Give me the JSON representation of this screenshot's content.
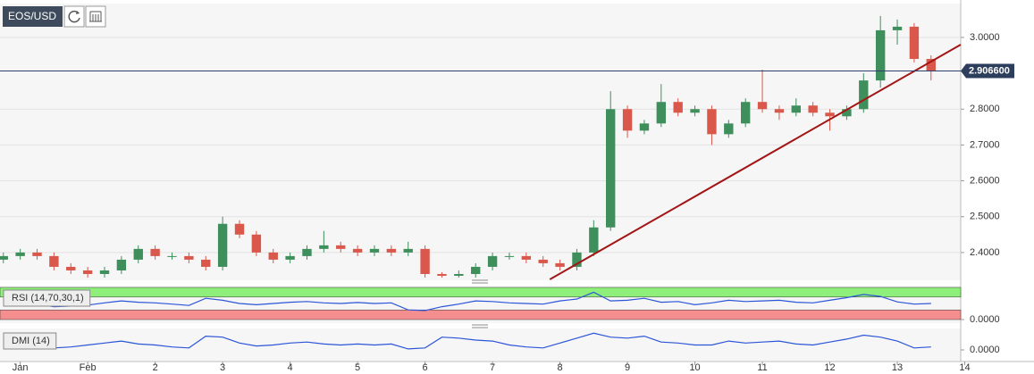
{
  "chart_data": {
    "type": "candlestick",
    "title": "EOS/USD",
    "x": [
      -0.25,
      0,
      0.25,
      0.5,
      0.75,
      1,
      1.25,
      1.5,
      1.75,
      2,
      2.25,
      2.5,
      2.75,
      3,
      3.25,
      3.5,
      3.75,
      4,
      4.25,
      4.5,
      4.75,
      5,
      5.25,
      5.5,
      5.75,
      6,
      6.25,
      6.5,
      6.75,
      7,
      7.25,
      7.5,
      7.75,
      8,
      8.25,
      8.5,
      8.75,
      9,
      9.25,
      9.5,
      9.75,
      10,
      10.25,
      10.5,
      10.75,
      11,
      11.25,
      11.5,
      11.75,
      12,
      12.25,
      12.5,
      12.75,
      13,
      13.25,
      13.5
    ],
    "open": [
      2.38,
      2.39,
      2.4,
      2.39,
      2.36,
      2.35,
      2.34,
      2.35,
      2.38,
      2.41,
      2.39,
      2.39,
      2.38,
      2.36,
      2.48,
      2.45,
      2.4,
      2.38,
      2.39,
      2.41,
      2.42,
      2.41,
      2.4,
      2.41,
      2.4,
      2.41,
      2.34,
      2.335,
      2.34,
      2.36,
      2.39,
      2.39,
      2.38,
      2.37,
      2.36,
      2.4,
      2.47,
      2.8,
      2.74,
      2.76,
      2.82,
      2.79,
      2.8,
      2.73,
      2.76,
      2.82,
      2.8,
      2.79,
      2.81,
      2.79,
      2.78,
      2.8,
      2.88,
      3.02,
      3.03,
      2.94
    ],
    "high": [
      2.4,
      2.41,
      2.41,
      2.4,
      2.37,
      2.36,
      2.36,
      2.39,
      2.42,
      2.42,
      2.4,
      2.4,
      2.39,
      2.5,
      2.49,
      2.46,
      2.41,
      2.4,
      2.42,
      2.46,
      2.43,
      2.42,
      2.42,
      2.42,
      2.43,
      2.42,
      2.345,
      2.35,
      2.37,
      2.4,
      2.4,
      2.4,
      2.39,
      2.38,
      2.41,
      2.49,
      2.85,
      2.81,
      2.77,
      2.87,
      2.83,
      2.81,
      2.81,
      2.77,
      2.83,
      2.91,
      2.81,
      2.83,
      2.82,
      2.8,
      2.81,
      2.9,
      3.06,
      3.05,
      3.04,
      2.95
    ],
    "low": [
      2.37,
      2.38,
      2.38,
      2.35,
      2.34,
      2.33,
      2.33,
      2.34,
      2.37,
      2.38,
      2.38,
      2.37,
      2.35,
      2.35,
      2.44,
      2.39,
      2.37,
      2.37,
      2.38,
      2.4,
      2.4,
      2.39,
      2.39,
      2.39,
      2.39,
      2.33,
      2.33,
      2.33,
      2.33,
      2.35,
      2.38,
      2.37,
      2.36,
      2.35,
      2.35,
      2.39,
      2.46,
      2.72,
      2.73,
      2.75,
      2.78,
      2.78,
      2.7,
      2.72,
      2.75,
      2.79,
      2.77,
      2.78,
      2.78,
      2.74,
      2.77,
      2.79,
      2.86,
      2.98,
      2.93,
      2.88
    ],
    "close": [
      2.39,
      2.4,
      2.39,
      2.36,
      2.35,
      2.34,
      2.35,
      2.38,
      2.41,
      2.39,
      2.39,
      2.38,
      2.36,
      2.48,
      2.45,
      2.4,
      2.38,
      2.39,
      2.41,
      2.42,
      2.41,
      2.4,
      2.41,
      2.4,
      2.41,
      2.34,
      2.335,
      2.34,
      2.36,
      2.39,
      2.39,
      2.38,
      2.37,
      2.36,
      2.4,
      2.47,
      2.8,
      2.74,
      2.76,
      2.82,
      2.79,
      2.8,
      2.73,
      2.76,
      2.82,
      2.8,
      2.79,
      2.81,
      2.79,
      2.78,
      2.8,
      2.88,
      3.02,
      3.03,
      2.94,
      2.906
    ],
    "up_color": "#3f8f5c",
    "down_color": "#d9574b",
    "xlim": [
      -0.3,
      13.94
    ],
    "ylim": [
      2.325,
      3.092
    ],
    "xticks": [
      {
        "value": 0,
        "label": "Jan"
      },
      {
        "value": 1,
        "label": "Feb"
      },
      2,
      3,
      4,
      5,
      6,
      7,
      8,
      9,
      10,
      11,
      12,
      13,
      14
    ],
    "yticks": [
      {
        "value": 2.4,
        "label": "2.4000"
      },
      {
        "value": 2.5,
        "label": "2.5000"
      },
      {
        "value": 2.6,
        "label": "2.6000"
      },
      {
        "value": 2.7,
        "label": "2.7000"
      },
      {
        "value": 2.8,
        "label": "2.8000"
      },
      {
        "value": 3.0,
        "label": "3.0000"
      }
    ],
    "grid": true,
    "current_price": {
      "value": 2.9066,
      "label": "2.906600"
    },
    "trendline": {
      "x": [
        7.85,
        13.94
      ],
      "y": [
        2.325,
        2.98
      ],
      "color": "#a31515"
    },
    "rsi": {
      "label": "RSI (14,70,30,1)",
      "ylim": [
        0,
        100
      ],
      "yticks": [
        {
          "value": 0,
          "label": "0.0000"
        }
      ],
      "bands": [
        30,
        70
      ],
      "color": "#2b55d8",
      "values": [
        50,
        52,
        48,
        40,
        42,
        45,
        52,
        58,
        54,
        52,
        48,
        44,
        66,
        60,
        50,
        46,
        50,
        54,
        56,
        52,
        50,
        53,
        50,
        52,
        30,
        28,
        40,
        48,
        58,
        56,
        52,
        50,
        48,
        58,
        64,
        85,
        58,
        60,
        66,
        54,
        56,
        46,
        52,
        60,
        56,
        58,
        60,
        54,
        52,
        60,
        68,
        78,
        72,
        55,
        48,
        50
      ]
    },
    "dmi": {
      "label": "DMI (14)",
      "ylim": [
        0,
        40
      ],
      "yticks": [
        {
          "value": 0,
          "label": "0.0000"
        }
      ],
      "color": "#2b55d8",
      "values": [
        10,
        12,
        8,
        4,
        6,
        10,
        14,
        18,
        12,
        10,
        6,
        4,
        28,
        26,
        14,
        8,
        10,
        14,
        16,
        12,
        10,
        12,
        10,
        12,
        2,
        4,
        26,
        24,
        20,
        18,
        10,
        6,
        4,
        14,
        24,
        34,
        26,
        24,
        28,
        16,
        14,
        10,
        10,
        18,
        14,
        16,
        18,
        12,
        10,
        16,
        22,
        30,
        26,
        18,
        4,
        6
      ]
    }
  }
}
